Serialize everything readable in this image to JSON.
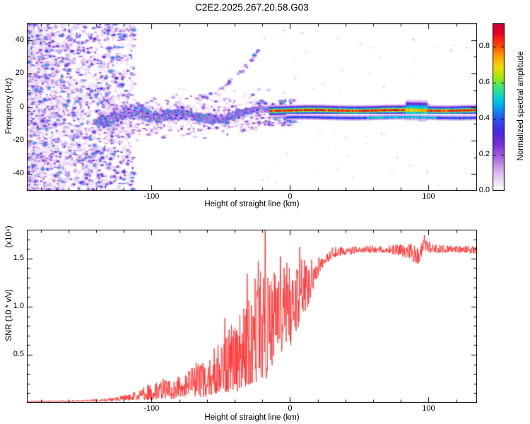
{
  "figure": {
    "title": "C2E2.2025.267.20.58.G03",
    "bg": "#ffffff"
  },
  "chart_data": [
    {
      "type": "heatmap",
      "name": "radio-occultation-spectrogram",
      "xlabel": "Height of straight line (km)",
      "ylabel": "Frequency (Hz)",
      "xlim": [
        -190,
        135
      ],
      "ylim": [
        -50,
        50
      ],
      "x_ticks": [
        -100,
        0,
        100
      ],
      "y_ticks": [
        -40,
        -20,
        0,
        20,
        40
      ],
      "colorbar": {
        "label": "Normalized spectral amplitude",
        "ticks": [
          0.0,
          0.2,
          0.4,
          0.6,
          0.8
        ],
        "vmax": 0.93
      },
      "features": {
        "noise_region": {
          "x_range": [
            -190,
            -112
          ],
          "freq_range": [
            -50,
            50
          ],
          "max_amplitude": 0.5
        },
        "main_track": {
          "points": [
            [
              -140,
              -5
            ],
            [
              -128,
              -6
            ],
            [
              -116,
              -5
            ],
            [
              -104,
              -7
            ],
            [
              -92,
              -6
            ],
            [
              -80,
              -4
            ],
            [
              -68,
              -6
            ],
            [
              -56,
              -5
            ],
            [
              -44,
              -4
            ],
            [
              -34,
              -4
            ],
            [
              -24,
              -3
            ],
            [
              -15,
              -2
            ]
          ],
          "spread_hz": [
            7,
            2
          ],
          "amplitude": [
            0.28,
            0.72
          ]
        },
        "upper_branch": {
          "points": [
            [
              -68,
              4
            ],
            [
              -58,
              7
            ],
            [
              -48,
              12
            ],
            [
              -40,
              17
            ],
            [
              -33,
              23
            ],
            [
              -27,
              29
            ],
            [
              -23,
              34
            ]
          ],
          "amplitude": [
            0.1,
            0.5
          ]
        },
        "carrier_band": {
          "x_range": [
            -15,
            135
          ],
          "center_freq": -2,
          "halo_hz": 3.4,
          "core_amplitude": 0.95
        },
        "secondary_line": {
          "x_range": [
            -3,
            135
          ],
          "center_freq": -6.3,
          "amplitude": 0.42
        },
        "blob_cluster": {
          "x_range": [
            83,
            99
          ],
          "center_freq": -3,
          "amplitude": 0.68
        }
      }
    },
    {
      "type": "line",
      "name": "snr-profile",
      "xlabel": "Height of straight line (km)",
      "ylabel": "SNR (10 * v/v)",
      "ylabel_scale": "(x10⁴)",
      "xlim": [
        -190,
        135
      ],
      "ylim": [
        0,
        1.8
      ],
      "x_ticks": [
        -100,
        0,
        100
      ],
      "y_ticks": [
        0.5,
        1.0,
        1.5
      ],
      "color": "#ff2d2d",
      "envelope": [
        [
          -190,
          0.012,
          0.022
        ],
        [
          -160,
          0.012,
          0.026
        ],
        [
          -142,
          0.014,
          0.036
        ],
        [
          -130,
          0.016,
          0.05
        ],
        [
          -120,
          0.02,
          0.08
        ],
        [
          -110,
          0.025,
          0.13
        ],
        [
          -101,
          0.03,
          0.2
        ],
        [
          -93,
          0.04,
          0.27
        ],
        [
          -85,
          0.04,
          0.22
        ],
        [
          -77,
          0.05,
          0.32
        ],
        [
          -69,
          0.06,
          0.44
        ],
        [
          -61,
          0.06,
          0.5
        ],
        [
          -53,
          0.08,
          0.62
        ],
        [
          -45,
          0.1,
          0.76
        ],
        [
          -37,
          0.12,
          0.92
        ],
        [
          -29,
          0.15,
          1.12
        ],
        [
          -23,
          0.18,
          1.5
        ],
        [
          -17,
          0.25,
          1.38
        ],
        [
          -11,
          0.45,
          1.36
        ],
        [
          -5,
          0.55,
          1.44
        ],
        [
          1,
          0.6,
          1.5
        ],
        [
          7,
          0.82,
          1.56
        ],
        [
          13,
          1.0,
          1.44
        ],
        [
          19,
          1.28,
          1.56
        ],
        [
          25,
          1.44,
          1.6
        ],
        [
          33,
          1.52,
          1.62
        ],
        [
          50,
          1.56,
          1.63
        ],
        [
          70,
          1.56,
          1.64
        ],
        [
          86,
          1.5,
          1.66
        ],
        [
          92,
          1.43,
          1.64
        ],
        [
          97,
          1.55,
          1.72
        ],
        [
          104,
          1.56,
          1.65
        ],
        [
          120,
          1.56,
          1.63
        ],
        [
          135,
          1.55,
          1.63
        ]
      ],
      "spikes": [
        [
          -18,
          1.93
        ],
        [
          -31,
          1.34
        ],
        [
          -47,
          0.88
        ],
        [
          -7,
          1.52
        ],
        [
          7,
          1.62
        ],
        [
          97,
          1.74
        ]
      ]
    }
  ]
}
